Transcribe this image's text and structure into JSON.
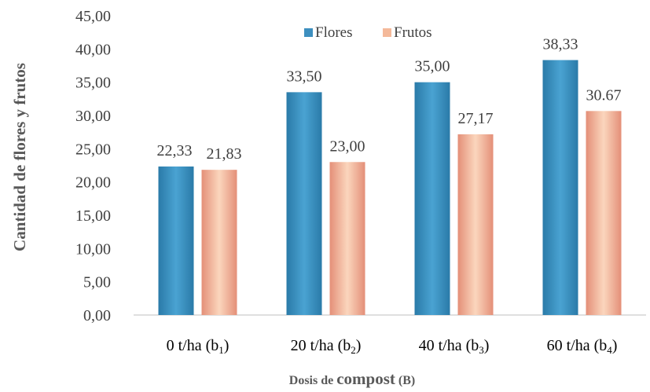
{
  "chart_data": {
    "type": "bar",
    "title": "",
    "xlabel": "Dosis de compost (B)",
    "ylabel": "Cantidad de flores y frutos",
    "ylim": [
      0,
      45
    ],
    "ytick_step": 5,
    "y_tick_labels": [
      "0,00",
      "5,00",
      "10,00",
      "15,00",
      "20,00",
      "25,00",
      "30,00",
      "35,00",
      "40,00",
      "45,00"
    ],
    "categories": [
      {
        "main": "0 t/ha (b",
        "sub": "1",
        "tail": ")"
      },
      {
        "main": "20 t/ha (b",
        "sub": "2",
        "tail": ")"
      },
      {
        "main": "40 t/ha (b",
        "sub": "3",
        "tail": ")"
      },
      {
        "main": "60 t/ha (b",
        "sub": "4",
        "tail": ")"
      }
    ],
    "series": [
      {
        "name": "Flores",
        "color": "#3d8fbf",
        "values": [
          22.33,
          33.5,
          35.0,
          38.33
        ],
        "labels": [
          "22,33",
          "33,50",
          "35,00",
          "38,33"
        ]
      },
      {
        "name": "Frutos",
        "color": "#f4b99a",
        "values": [
          21.83,
          23.0,
          27.17,
          30.67
        ],
        "labels": [
          "21,83",
          "23,00",
          "27,17",
          "30.67"
        ]
      }
    ],
    "legend_position": "top-center",
    "grid": false
  }
}
